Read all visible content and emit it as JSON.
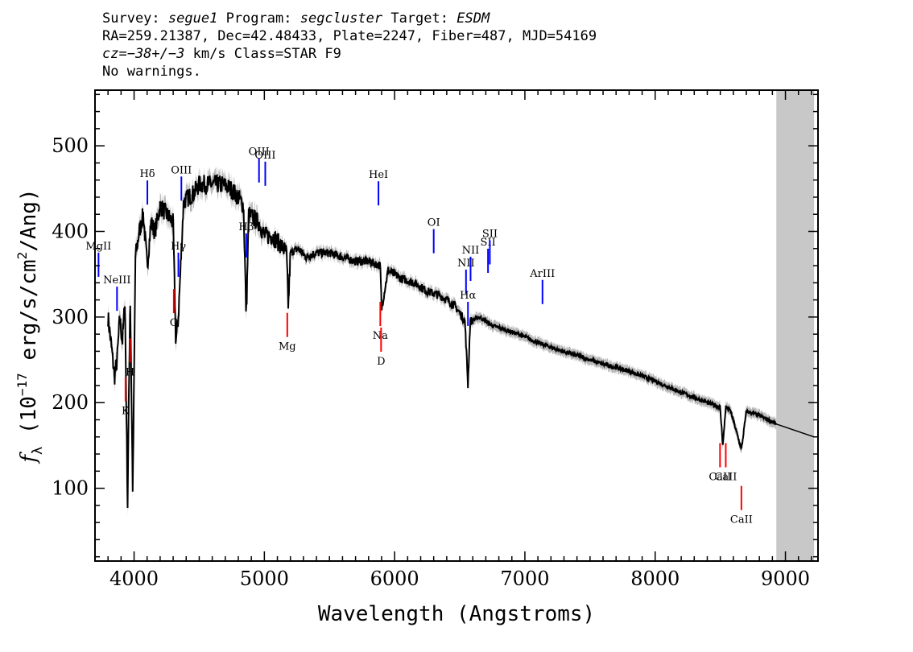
{
  "header": {
    "line1": {
      "survey_label": "Survey:",
      "survey": "segue1",
      "program_label": "Program:",
      "program": "segcluster",
      "target_label": "Target:",
      "target": "ESDM"
    },
    "line2": "RA=259.21387, Dec=42.48433, Plate=2247, Fiber=487, MJD=54169",
    "line3": {
      "cz": "cz=−38+/−3",
      "rest": " km/s Class=STAR F9"
    },
    "line4": "No warnings."
  },
  "chart_data": {
    "type": "line",
    "xlabel": "Wavelength (Angstroms)",
    "ylabel": "f_λ (10^-17 erg/s/cm^2/Ang)",
    "ylabel_parts": {
      "f": "f",
      "sub": "λ",
      "a": " (10",
      "exp1": "−17",
      "b": " erg/s/cm",
      "exp2": "2",
      "c": "/Ang)"
    },
    "xlim": [
      3700,
      9250
    ],
    "ylim": [
      15,
      565
    ],
    "xticks": [
      4000,
      5000,
      6000,
      7000,
      8000,
      9000
    ],
    "yticks": [
      100,
      200,
      300,
      400,
      500
    ],
    "grid": false,
    "masked_region": [
      8930,
      9220
    ],
    "colors": {
      "spectrum": "#000000",
      "error_band": "#b8b8b8",
      "mask": "#c8c8c8",
      "emission": "#0000ff",
      "absorption": "#ff0000"
    },
    "series": [
      {
        "x": [
          3800,
          3830,
          3850,
          3870,
          3890,
          3910,
          3930,
          3950,
          3970,
          3990,
          4010,
          4040,
          4070,
          4101,
          4130,
          4160,
          4200,
          4250,
          4300,
          4320,
          4340,
          4380,
          4420,
          4460,
          4500,
          4560,
          4620,
          4680,
          4740,
          4800,
          4840,
          4861,
          4880,
          4920,
          4960,
          5000,
          5060,
          5120,
          5170,
          5184,
          5200,
          5260,
          5320,
          5400,
          5500,
          5600,
          5700,
          5800,
          5890,
          5900,
          5950,
          6050,
          6150,
          6250,
          6350,
          6450,
          6500,
          6540,
          6563,
          6580,
          6650,
          6750,
          6850,
          6950,
          7100,
          7250,
          7400,
          7600,
          7800,
          8000,
          8200,
          8400,
          8498,
          8520,
          8542,
          8580,
          8662,
          8700,
          8800,
          8930,
          9220
        ],
        "y": [
          300,
          260,
          230,
          250,
          300,
          270,
          320,
          80,
          330,
          90,
          370,
          400,
          420,
          360,
          410,
          400,
          430,
          420,
          410,
          270,
          300,
          435,
          440,
          445,
          455,
          455,
          455,
          455,
          450,
          440,
          430,
          300,
          420,
          415,
          410,
          395,
          395,
          385,
          375,
          310,
          375,
          380,
          370,
          375,
          375,
          370,
          365,
          365,
          360,
          310,
          355,
          345,
          340,
          330,
          325,
          315,
          305,
          295,
          220,
          295,
          300,
          290,
          285,
          280,
          270,
          262,
          255,
          245,
          237,
          225,
          212,
          200,
          195,
          150,
          195,
          190,
          145,
          190,
          185,
          175,
          160
        ]
      }
    ],
    "emission_lines": [
      {
        "label": "MgII",
        "x": 3727
      },
      {
        "label": "NeIII",
        "x": 3869
      },
      {
        "label": "Hδ",
        "x": 4102
      },
      {
        "label": "Hγ",
        "x": 4340
      },
      {
        "label": "OIII",
        "x": 4363
      },
      {
        "label": "Hβ",
        "x": 4861
      },
      {
        "label": "OIII",
        "x": 4959
      },
      {
        "label": "OIII",
        "x": 5007
      },
      {
        "label": "HeI",
        "x": 5876
      },
      {
        "label": "OI",
        "x": 6300
      },
      {
        "label": "NII",
        "x": 6548
      },
      {
        "label": "Hα",
        "x": 6563
      },
      {
        "label": "NII",
        "x": 6583
      },
      {
        "label": "SII",
        "x": 6717
      },
      {
        "label": "SII",
        "x": 6731
      },
      {
        "label": "ArIII",
        "x": 7135
      }
    ],
    "absorption_lines": [
      {
        "label": "K",
        "x": 3934
      },
      {
        "label": "H",
        "x": 3969
      },
      {
        "label": "G",
        "x": 4305
      },
      {
        "label": "Mg",
        "x": 5176
      },
      {
        "label": "Na",
        "x": 5890
      },
      {
        "label": "D",
        "x": 5896
      },
      {
        "label": "CaII",
        "x": 8498
      },
      {
        "label": "CaII",
        "x": 8542
      },
      {
        "label": "CaII",
        "x": 8662
      }
    ]
  }
}
